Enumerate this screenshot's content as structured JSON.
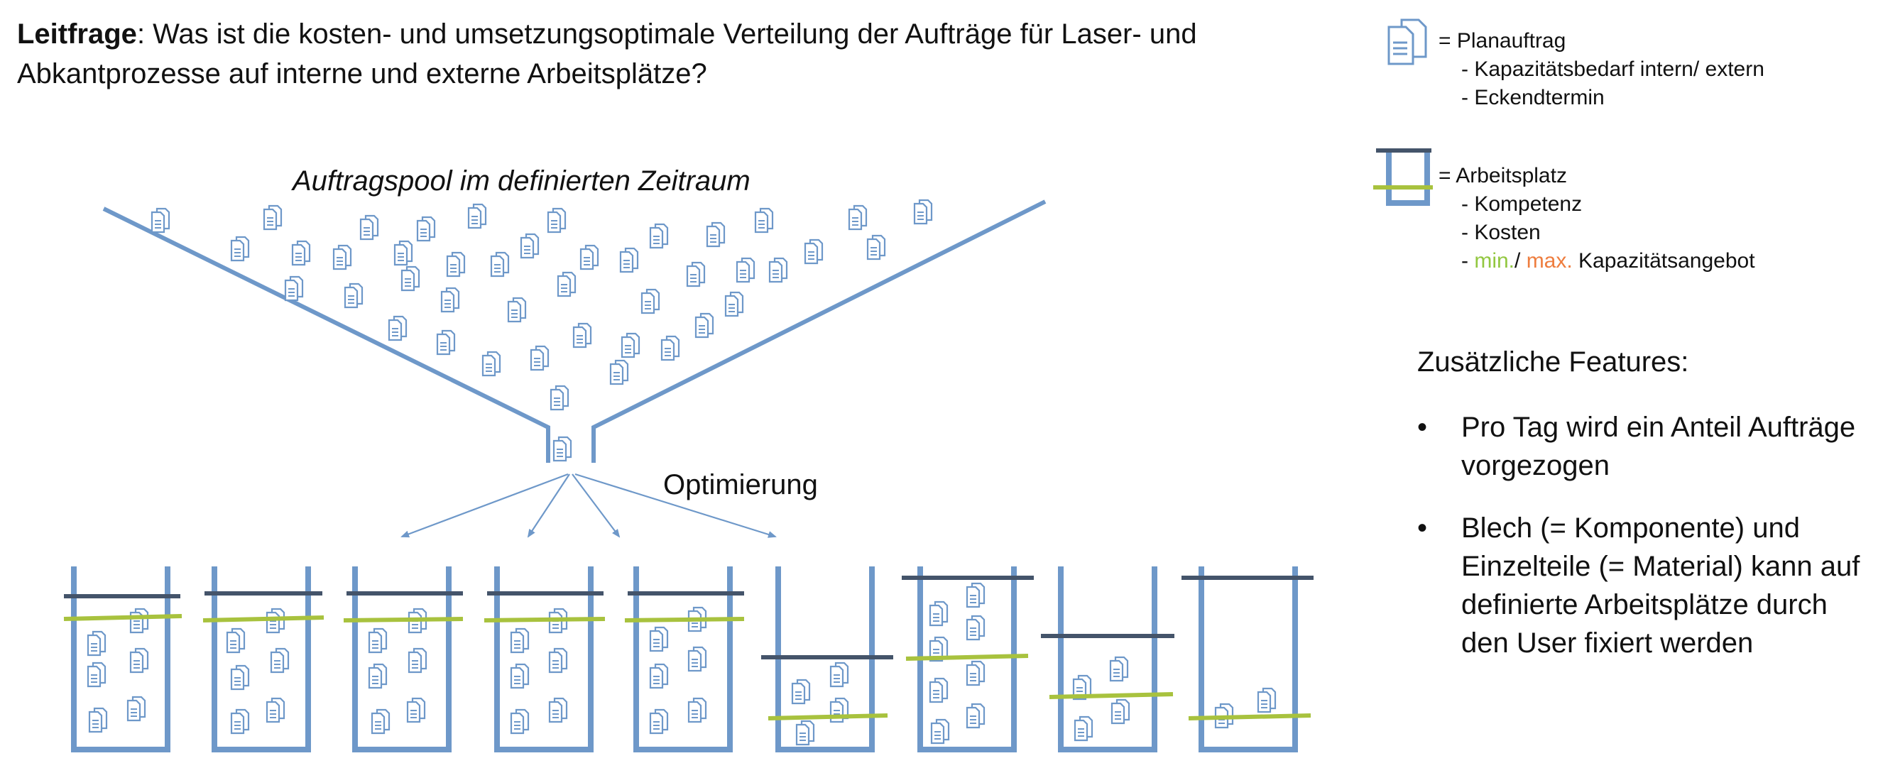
{
  "question": {
    "label": "Leitfrage",
    "text": ": Was ist die kosten- und umsetzungsoptimale Verteilung der Aufträge für Laser- und Abkantprozesse auf interne und externe Arbeitsplätze?"
  },
  "diagram": {
    "pool_label": "Auftragspool im definierten Zeitraum",
    "optimization_label": "Optimierung"
  },
  "legend": {
    "order": {
      "title": "= Planauftrag",
      "items": [
        "- Kapazitätsbedarf intern/ extern",
        "- Eckendtermin"
      ]
    },
    "workplace": {
      "title": "= Arbeitsplatz",
      "items": [
        "- Kompetenz",
        "- Kosten"
      ],
      "capacity_prefix": "- ",
      "min_label": "min.",
      "separator": "/ ",
      "max_label": "max.",
      "capacity_suffix": " Kapazitätsangebot"
    }
  },
  "features": {
    "title": "Zusätzliche Features:",
    "items": [
      "Pro Tag wird ein Anteil Aufträge vorgezogen",
      "Blech (= Komponente) und Einzelteile (= Material) kann auf definierte Arbeitsplätze durch den User fixiert werden"
    ]
  },
  "colors": {
    "blue": "#6e98c9",
    "dark_bar": "#44546a",
    "min_bar": "#a8c23e",
    "min_text": "#92c740",
    "max_text": "#ee7d3e"
  }
}
